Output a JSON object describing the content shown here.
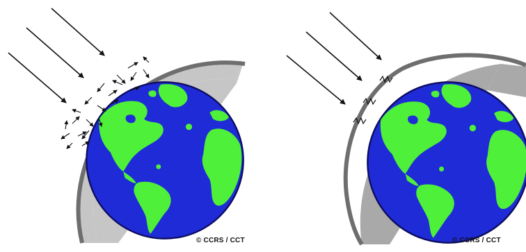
{
  "colors": {
    "ocean": "#1f2bd6",
    "land": "#4ef03a",
    "atmosphere": "#c6c6c6",
    "atmosphere_edge": "#6e6e6e",
    "arrow": "#111111",
    "background": "#ffffff"
  },
  "panels": [
    {
      "name": "scattering",
      "credit": "© CCRS / CCT",
      "incoming_rays": 3,
      "atmosphere_effect": "scattered-arrows"
    },
    {
      "name": "absorption",
      "credit": "© CCRS / CCT",
      "incoming_rays": 3,
      "atmosphere_effect": "wavy-absorption-marks"
    }
  ]
}
